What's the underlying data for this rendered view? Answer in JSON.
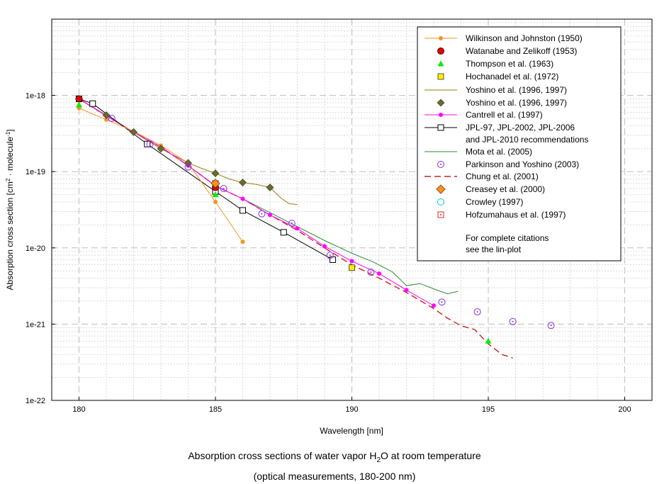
{
  "chart_data": {
    "type": "scatter",
    "title_line1": "Absorption cross sections of water vapor H",
    "title_sub": "2",
    "title_line1_end": "O at room temperature",
    "title_line2": "(optical measurements, 180-200 nm)",
    "xlabel": "Wavelength [nm]",
    "ylabel_main": "Absorption cross section [cm",
    "ylabel_sup1": "2",
    "ylabel_mid": " · molecule",
    "ylabel_sup2": "-1",
    "ylabel_end": "]",
    "xlim": [
      179,
      201
    ],
    "ylim": [
      1e-22,
      1e-17
    ],
    "yscale": "log",
    "xticks": [
      180,
      185,
      190,
      195,
      200
    ],
    "xtick_labels": [
      "180",
      "185",
      "190",
      "195",
      "200"
    ],
    "yticks": [
      1e-22,
      1e-21,
      1e-20,
      1e-19,
      1e-18
    ],
    "ytick_labels": [
      "1e-22",
      "1e-21",
      "1e-20",
      "1e-19",
      "1e-18"
    ],
    "grid": true,
    "legend_position": "top-right",
    "series": [
      {
        "name": "Wilkinson and Johnston (1950)",
        "style": "orange-dot-line",
        "color": "#f7931e",
        "x": [
          180,
          181,
          182,
          183,
          184,
          185,
          186
        ],
        "y": [
          6.8e-19,
          4.8e-19,
          3.4e-19,
          2.2e-19,
          1.3e-19,
          4e-20,
          1.2e-20
        ]
      },
      {
        "name": "Watanabe and Zelikoff (1953)",
        "style": "red-dot",
        "color": "#e00000",
        "x": [
          180,
          185
        ],
        "y": [
          9e-19,
          6.2e-20
        ]
      },
      {
        "name": "Thompson et al. (1963)",
        "style": "green-triangle",
        "color": "#00ee00",
        "x": [
          180,
          185,
          195
        ],
        "y": [
          7.5e-19,
          5e-20,
          6e-22
        ]
      },
      {
        "name": "Hochanadel et al. (1972)",
        "style": "yellow-square",
        "color": "#ffee00",
        "x": [
          185,
          190
        ],
        "y": [
          7e-20,
          5.5e-21
        ]
      },
      {
        "name": "Yoshino et al. (1996, 1997)",
        "style": "olive-line",
        "color": "#9c7a10",
        "x": [
          180,
          181,
          182,
          183,
          184,
          184.5,
          185,
          185.5,
          186,
          186.5,
          187,
          187.4,
          187.7,
          188
        ],
        "y": [
          9e-19,
          5.5e-19,
          3.3e-19,
          2e-19,
          1.3e-19,
          1.1e-19,
          9.5e-20,
          8e-20,
          7.2e-20,
          6.8e-20,
          6.2e-20,
          4.5e-20,
          3.8e-20,
          3.7e-20
        ]
      },
      {
        "name": "Yoshino et al. (1996, 1997)",
        "style": "olive-diamond",
        "color": "#6b6b2a",
        "x": [
          180,
          181,
          182,
          183,
          184,
          185,
          186,
          187
        ],
        "y": [
          9e-19,
          5.5e-19,
          3.3e-19,
          2e-19,
          1.3e-19,
          9.5e-20,
          7.2e-20,
          6.2e-20
        ]
      },
      {
        "name": "Cantrell et al. (1997)",
        "style": "magenta-dot-line",
        "color": "#ff00ff",
        "x": [
          180,
          181,
          182,
          183,
          184,
          185,
          186,
          187,
          188,
          189,
          190,
          191,
          192,
          193
        ],
        "y": [
          9e-19,
          5.4e-19,
          3.3e-19,
          2.1e-19,
          1.2e-19,
          6.5e-20,
          4.4e-20,
          2.7e-20,
          1.8e-20,
          1.05e-20,
          6.7e-21,
          4.6e-21,
          2.8e-21,
          1.75e-21
        ]
      },
      {
        "name": "JPL-97, JPL-2002, JPL-2006",
        "name_line2": "and JPL-2010 recommendations",
        "style": "black-open-square",
        "color": "#000000",
        "x": [
          180,
          180.5,
          182.5,
          185,
          186,
          187.5,
          189.3
        ],
        "y": [
          9e-19,
          7.8e-19,
          2.3e-19,
          5.5e-20,
          3.1e-20,
          1.6e-20,
          7e-21
        ]
      },
      {
        "name": "Mota et al. (2005)",
        "style": "green-line",
        "color": "#2e8b2e",
        "x": [
          180,
          181,
          182,
          183,
          184,
          185,
          186,
          187,
          188,
          189,
          190,
          190.8,
          191.5,
          192,
          192.5,
          193,
          193.5,
          193.9
        ],
        "y": [
          9e-19,
          5.4e-19,
          3.3e-19,
          2.1e-19,
          1.2e-19,
          6.5e-20,
          4.4e-20,
          2.9e-20,
          1.9e-20,
          1.25e-20,
          8.5e-21,
          6.5e-21,
          4.8e-21,
          3.2e-21,
          3.4e-21,
          2.9e-21,
          2.5e-21,
          2.7e-21
        ]
      },
      {
        "name": "Parkinson and Yoshino (2003)",
        "style": "purple-open-circle-dot",
        "color": "#8a2be2",
        "x": [
          181.2,
          182.6,
          184,
          185.3,
          186.7,
          187.8,
          189.2,
          190.7,
          193.3,
          194.6,
          195.9,
          197.3
        ],
        "y": [
          5e-19,
          2.3e-19,
          1.15e-19,
          6e-20,
          2.8e-20,
          2.1e-20,
          8e-21,
          4.8e-21,
          1.95e-21,
          1.45e-21,
          1.08e-21,
          9.6e-22
        ]
      },
      {
        "name": "Chung et al. (2001)",
        "style": "red-dash",
        "color": "#cc2222",
        "x": [
          180,
          181,
          182,
          183,
          184,
          185,
          186,
          187,
          188,
          189,
          190,
          191,
          192,
          193,
          193.5,
          194,
          194.5,
          195,
          195.5,
          195.9
        ],
        "y": [
          9e-19,
          5.4e-19,
          3.3e-19,
          2.1e-19,
          1.2e-19,
          6.5e-20,
          4.4e-20,
          2.7e-20,
          1.7e-20,
          1e-20,
          6e-21,
          4e-21,
          2.6e-21,
          1.6e-21,
          1.2e-21,
          9.5e-22,
          8.5e-22,
          5.5e-22,
          4e-22,
          3.6e-22
        ]
      },
      {
        "name": "Creasey et al. (2000)",
        "style": "orange-diamond",
        "color": "#f7931e",
        "x": [
          185
        ],
        "y": [
          7e-20
        ]
      },
      {
        "name": "Crowley (1997)",
        "style": "cyan-open-circle",
        "color": "#00cccc",
        "x": [],
        "y": []
      },
      {
        "name": "Hofzumahaus et al. (1997)",
        "style": "red-open-square-dot",
        "color": "#ee2222",
        "x": [],
        "y": []
      }
    ],
    "note_line1": "For complete citations",
    "note_line2": "see the lin-plot"
  }
}
